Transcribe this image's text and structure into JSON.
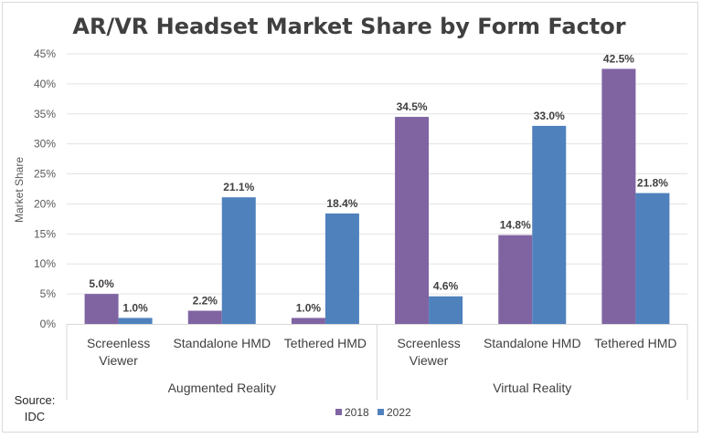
{
  "chart_data": {
    "type": "bar",
    "title": "AR/VR Headset Market Share by Form Factor",
    "ylabel": "Market Share",
    "xlabel": "",
    "ylim": [
      0,
      45
    ],
    "yticks": [
      "0%",
      "5%",
      "10%",
      "15%",
      "20%",
      "25%",
      "30%",
      "35%",
      "40%",
      "45%"
    ],
    "ytick_values": [
      0,
      5,
      10,
      15,
      20,
      25,
      30,
      35,
      40,
      45
    ],
    "grid": true,
    "groups": [
      {
        "label": "Augmented Reality",
        "categories": [
          "Screenless Viewer",
          "Standalone HMD",
          "Tethered HMD"
        ]
      },
      {
        "label": "Virtual Reality",
        "categories": [
          "Screenless Viewer",
          "Standalone HMD",
          "Tethered HMD"
        ]
      }
    ],
    "category_lines": [
      [
        "Screenless",
        "Viewer"
      ],
      [
        "Standalone HMD"
      ],
      [
        "Tethered HMD"
      ],
      [
        "Screenless",
        "Viewer"
      ],
      [
        "Standalone HMD"
      ],
      [
        "Tethered HMD"
      ]
    ],
    "series": [
      {
        "name": "2018",
        "color": "#8064a2",
        "values": [
          5.0,
          2.2,
          1.0,
          34.5,
          14.8,
          42.5
        ],
        "labels": [
          "5.0%",
          "2.2%",
          "1.0%",
          "34.5%",
          "14.8%",
          "42.5%"
        ]
      },
      {
        "name": "2022",
        "color": "#4f81bd",
        "values": [
          1.0,
          21.1,
          18.4,
          4.6,
          33.0,
          21.8
        ],
        "labels": [
          "1.0%",
          "21.1%",
          "18.4%",
          "4.6%",
          "33.0%",
          "21.8%"
        ]
      }
    ],
    "legend_position": "bottom"
  },
  "source_line1": "Source:",
  "source_line2": "IDC"
}
